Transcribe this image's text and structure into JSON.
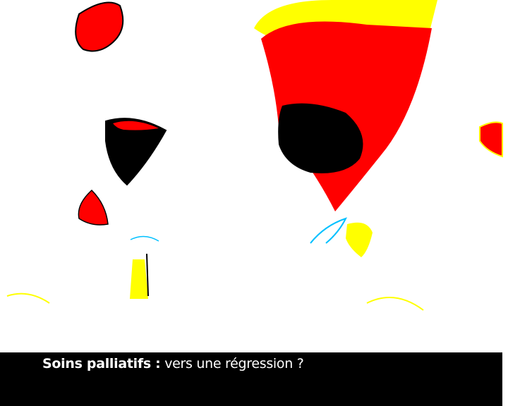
{
  "caption": {
    "bold_part": "Soins palliatifs :",
    "rest_part": " vers une régression ?"
  },
  "colors": {
    "red": "#ff0000",
    "yellow": "#ffff00",
    "black": "#000000",
    "white": "#ffffff",
    "cyan": "#00c0ff"
  }
}
